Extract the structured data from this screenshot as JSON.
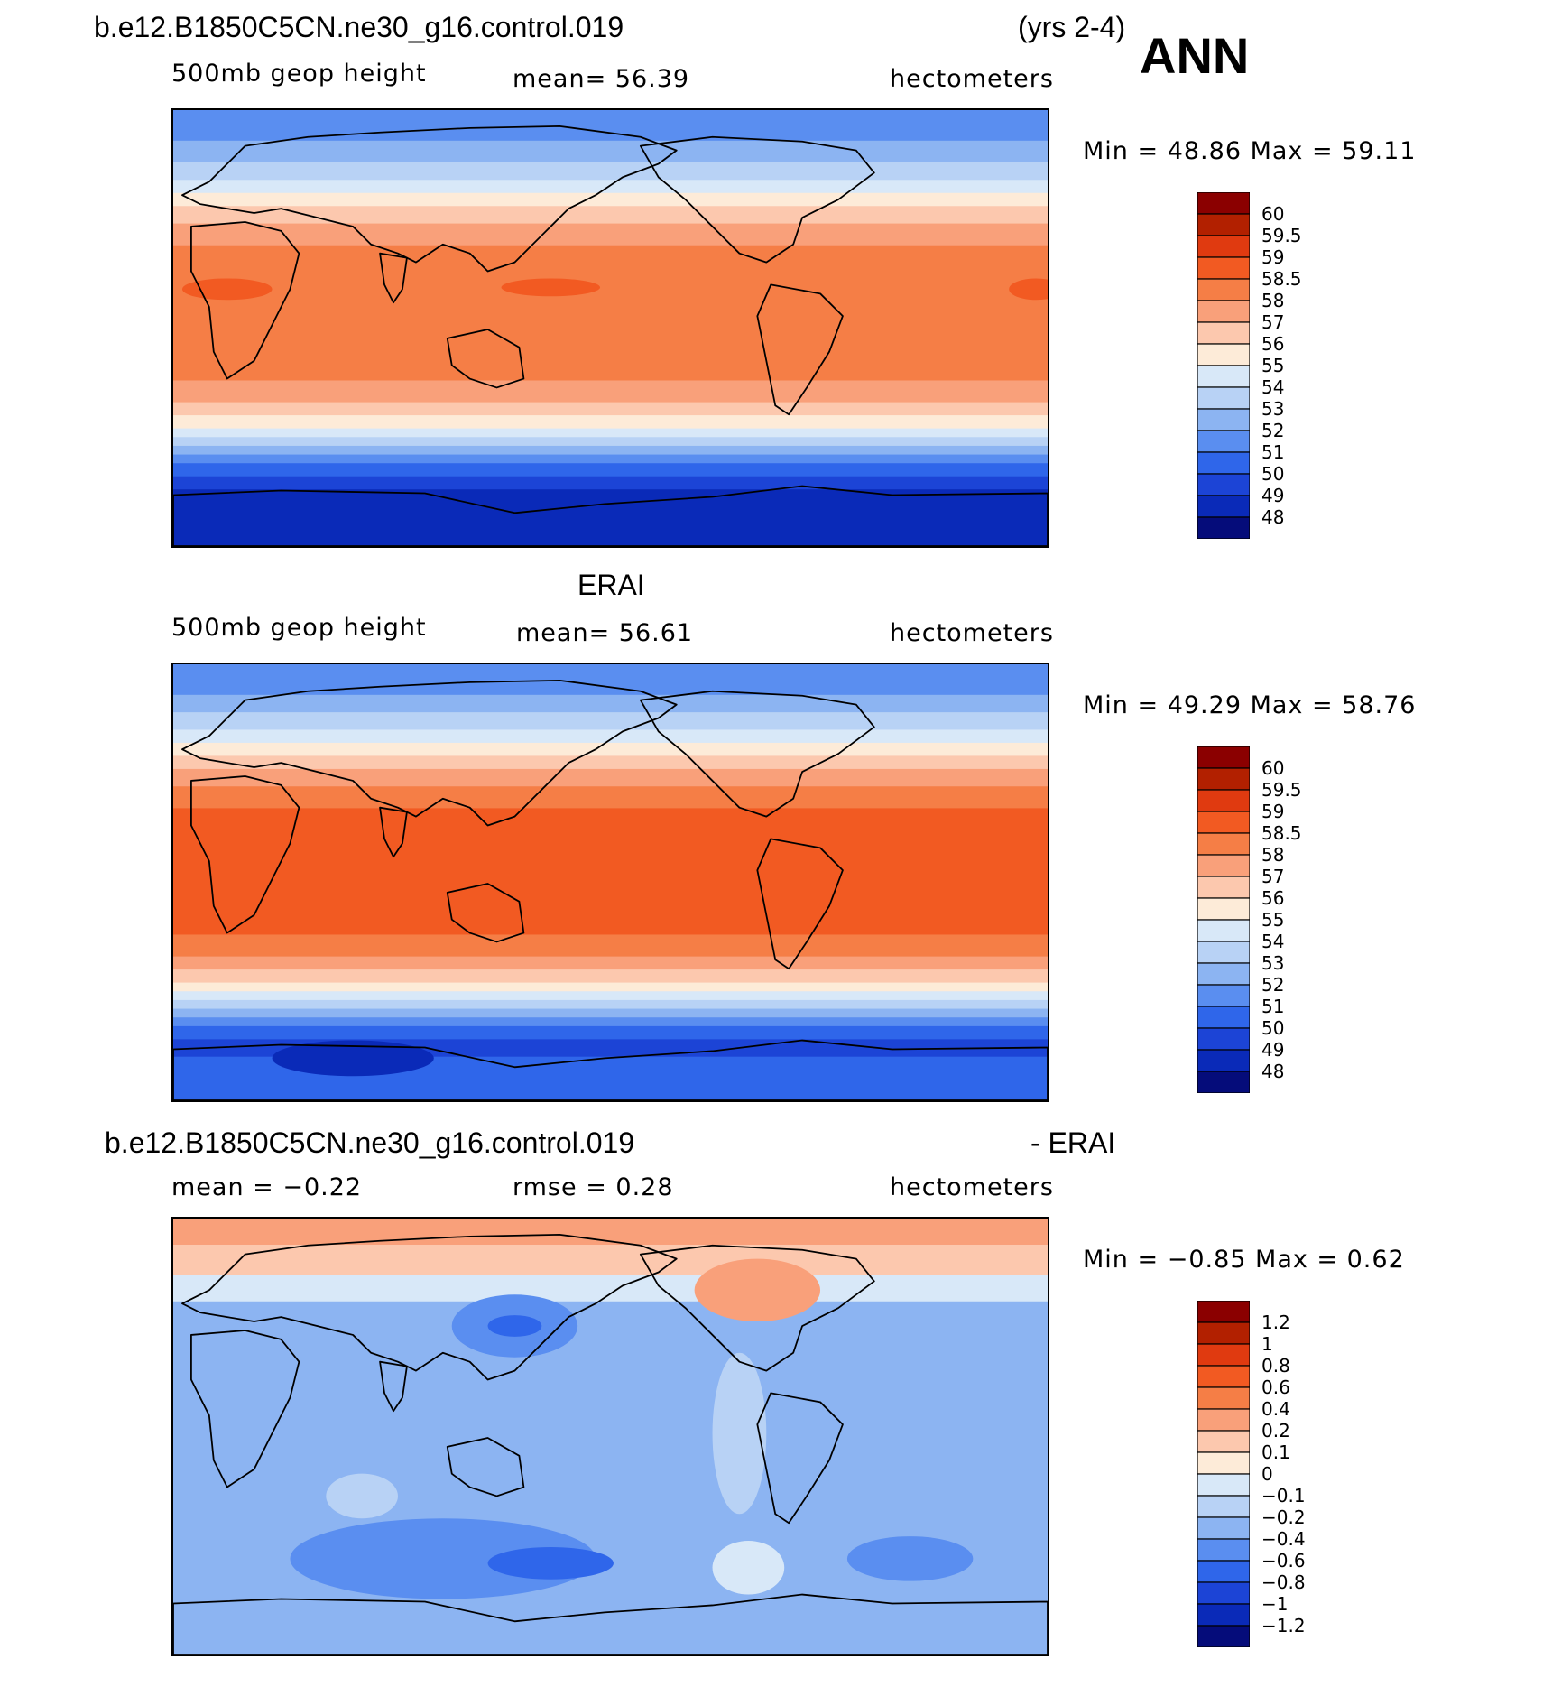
{
  "page": {
    "case_name": "b.e12.B1850C5CN.ne30_g16.control.019",
    "years": "(yrs 2-4)",
    "season": "ANN"
  },
  "panels": [
    {
      "header": "",
      "variable": "500mb geop height",
      "stat_text": "mean=   56.39",
      "rmse_text": "",
      "units": "hectometers",
      "minmax": "Min =    48.86  Max =    59.11",
      "colorbar_labels": [
        "60",
        "59.5",
        "59",
        "58.5",
        "58",
        "57",
        "56",
        "55",
        "54",
        "53",
        "52",
        "51",
        "50",
        "49",
        "48"
      ]
    },
    {
      "header": "ERAI",
      "variable": "500mb geop height",
      "stat_text": "mean=   56.61",
      "rmse_text": "",
      "units": "hectometers",
      "minmax": "Min =    49.29  Max =    58.76",
      "colorbar_labels": [
        "60",
        "59.5",
        "59",
        "58.5",
        "58",
        "57",
        "56",
        "55",
        "54",
        "53",
        "52",
        "51",
        "50",
        "49",
        "48"
      ]
    },
    {
      "header": "b.e12.B1850C5CN.ne30_g16.control.019",
      "header_right": "- ERAI",
      "variable": "",
      "stat_text": "mean =   −0.22",
      "rmse_text": "rmse =    0.28",
      "units": "hectometers",
      "minmax": "Min =   −0.85  Max =     0.62",
      "colorbar_labels": [
        "1.2",
        "1",
        "0.8",
        "0.6",
        "0.4",
        "0.2",
        "0.1",
        "0",
        "−0.1",
        "−0.2",
        "−0.4",
        "−0.6",
        "−0.8",
        "−1",
        "−1.2"
      ]
    }
  ],
  "colors": {
    "palette": [
      "#8b0000",
      "#b22000",
      "#e03a10",
      "#f25a22",
      "#f57e46",
      "#f9a07a",
      "#fcc8ae",
      "#fdebd8",
      "#d8e8f8",
      "#b8d2f5",
      "#8cb4f2",
      "#5a8ef0",
      "#2f66ea",
      "#1c44d6",
      "#0a2ab8",
      "#050c7a"
    ],
    "outline": "#000000"
  }
}
